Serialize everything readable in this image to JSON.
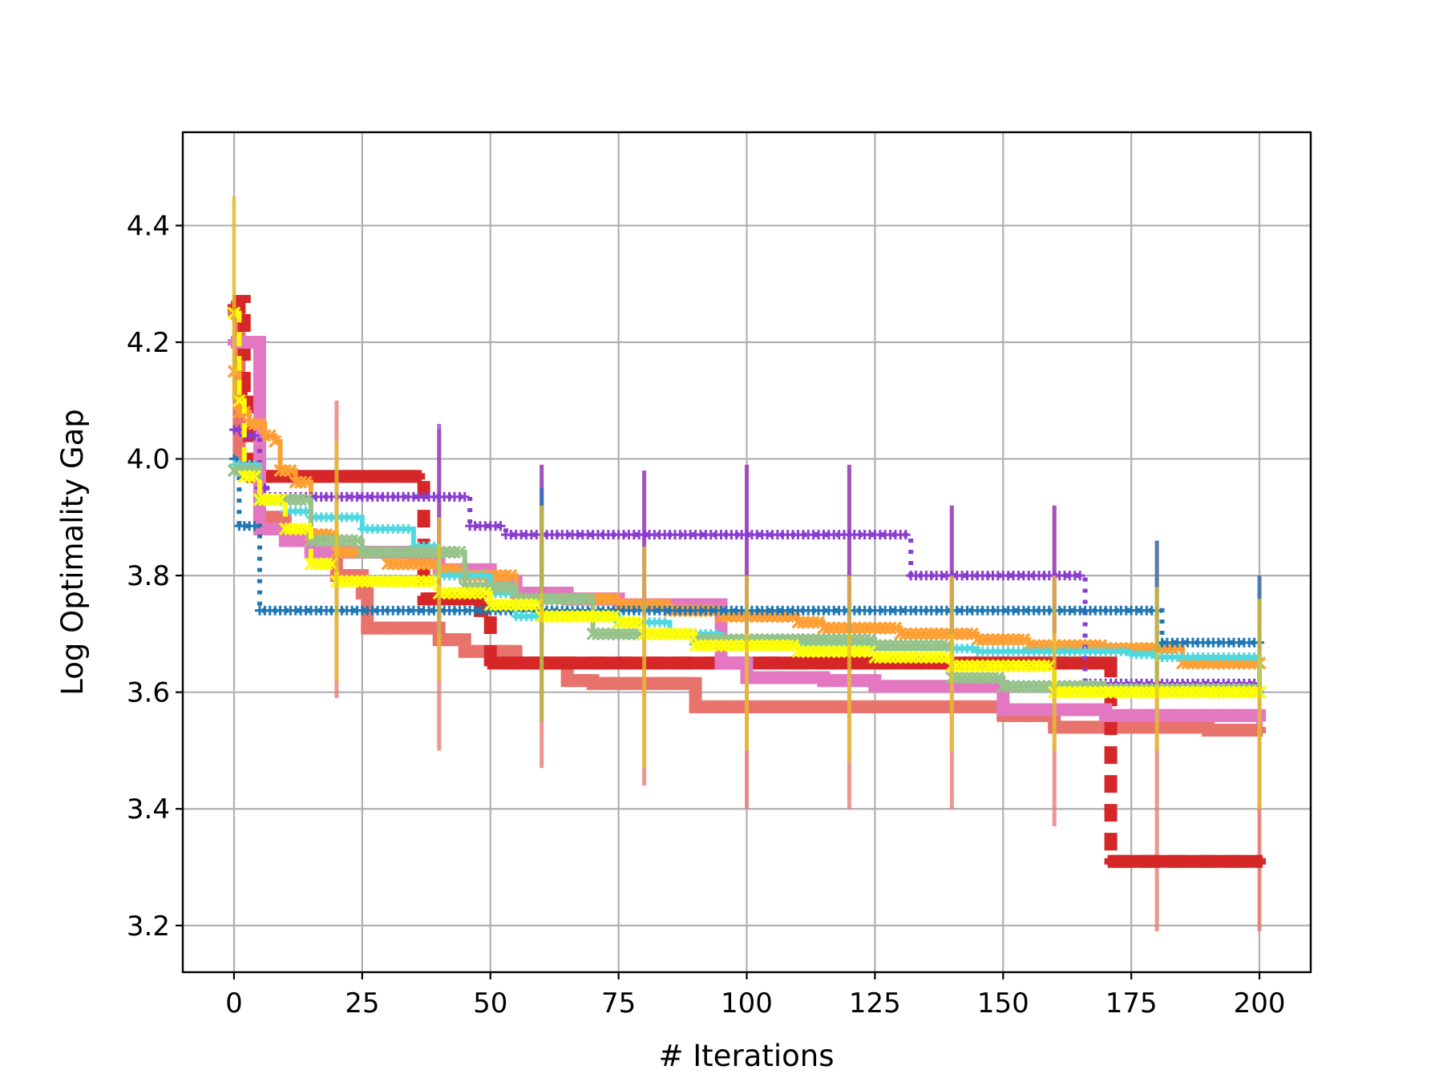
{
  "chart_data": {
    "type": "line",
    "title": "",
    "xlabel": "# Iterations",
    "ylabel": "Log Optimality Gap",
    "xlim": [
      -10,
      210
    ],
    "ylim": [
      3.12,
      4.56
    ],
    "xticks": [
      0,
      25,
      50,
      75,
      100,
      125,
      150,
      175,
      200
    ],
    "yticks": [
      3.2,
      3.4,
      3.6,
      3.8,
      4.0,
      4.2,
      4.4
    ],
    "xtick_labels": [
      "0",
      "25",
      "50",
      "75",
      "100",
      "125",
      "150",
      "175",
      "200"
    ],
    "ytick_labels": [
      "3.2",
      "3.4",
      "3.6",
      "3.8",
      "4.0",
      "4.2",
      "4.4"
    ],
    "grid": true,
    "legend": null,
    "series": [
      {
        "color": "#e8736c",
        "marker": "P",
        "width": 16,
        "dash": "",
        "steps": [
          [
            0,
            4.25
          ],
          [
            1,
            4.0
          ],
          [
            5,
            3.9
          ],
          [
            10,
            3.87
          ],
          [
            15,
            3.84
          ],
          [
            20,
            3.8
          ],
          [
            25,
            3.77
          ],
          [
            26,
            3.71
          ],
          [
            40,
            3.69
          ],
          [
            45,
            3.67
          ],
          [
            55,
            3.65
          ],
          [
            65,
            3.62
          ],
          [
            70,
            3.615
          ],
          [
            90,
            3.575
          ],
          [
            150,
            3.56
          ],
          [
            160,
            3.54
          ],
          [
            190,
            3.535
          ],
          [
            200,
            3.535
          ]
        ],
        "spikes": [
          [
            20,
            3.59,
            4.1
          ],
          [
            40,
            3.5,
            4.05
          ],
          [
            60,
            3.47,
            3.99
          ],
          [
            80,
            3.44,
            3.98
          ],
          [
            100,
            3.4,
            3.99
          ],
          [
            120,
            3.4,
            3.99
          ],
          [
            140,
            3.4,
            3.92
          ],
          [
            160,
            3.37,
            3.92
          ],
          [
            180,
            3.19,
            3.86
          ],
          [
            200,
            3.19,
            3.8
          ]
        ]
      },
      {
        "color": "#d62728",
        "marker": "P",
        "width": 16,
        "dash": "22,14",
        "steps": [
          [
            0,
            4.26
          ],
          [
            1,
            4.27
          ],
          [
            2,
            4.12
          ],
          [
            3,
            3.97
          ],
          [
            36,
            3.97
          ],
          [
            37,
            3.76
          ],
          [
            48,
            3.74
          ],
          [
            50,
            3.65
          ],
          [
            125,
            3.65
          ],
          [
            150,
            3.65
          ],
          [
            170,
            3.65
          ],
          [
            171,
            3.31
          ],
          [
            200,
            3.31
          ]
        ],
        "spikes": []
      },
      {
        "color": "#e377c2",
        "marker": "P",
        "width": 16,
        "dash": "",
        "steps": [
          [
            0,
            4.2
          ],
          [
            5,
            3.88
          ],
          [
            10,
            3.86
          ],
          [
            15,
            3.84
          ],
          [
            25,
            3.84
          ],
          [
            35,
            3.83
          ],
          [
            40,
            3.81
          ],
          [
            50,
            3.79
          ],
          [
            55,
            3.77
          ],
          [
            65,
            3.76
          ],
          [
            75,
            3.75
          ],
          [
            95,
            3.65
          ],
          [
            100,
            3.625
          ],
          [
            115,
            3.62
          ],
          [
            125,
            3.61
          ],
          [
            150,
            3.57
          ],
          [
            170,
            3.56
          ],
          [
            200,
            3.555
          ]
        ],
        "spikes": []
      },
      {
        "color": "#ff9f33",
        "marker": "x",
        "width": 6,
        "dash": "",
        "steps": [
          [
            0,
            4.15
          ],
          [
            1,
            4.08
          ],
          [
            3,
            4.06
          ],
          [
            6,
            4.04
          ],
          [
            8,
            4.03
          ],
          [
            9,
            3.98
          ],
          [
            12,
            3.96
          ],
          [
            15,
            3.87
          ],
          [
            20,
            3.84
          ],
          [
            30,
            3.82
          ],
          [
            40,
            3.81
          ],
          [
            45,
            3.8
          ],
          [
            55,
            3.76
          ],
          [
            75,
            3.75
          ],
          [
            85,
            3.74
          ],
          [
            95,
            3.73
          ],
          [
            110,
            3.72
          ],
          [
            115,
            3.71
          ],
          [
            130,
            3.7
          ],
          [
            145,
            3.69
          ],
          [
            155,
            3.68
          ],
          [
            170,
            3.675
          ],
          [
            185,
            3.65
          ],
          [
            200,
            3.65
          ]
        ],
        "spikes": []
      },
      {
        "color": "#8a3ccf",
        "marker": "+",
        "width": 6,
        "dash": "5,9",
        "steps": [
          [
            0,
            4.05
          ],
          [
            2,
            4.04
          ],
          [
            5,
            3.95
          ],
          [
            7,
            3.935
          ],
          [
            45,
            3.935
          ],
          [
            46,
            3.885
          ],
          [
            53,
            3.87
          ],
          [
            131,
            3.87
          ],
          [
            132,
            3.8
          ],
          [
            165,
            3.8
          ],
          [
            166,
            3.615
          ],
          [
            200,
            3.6
          ]
        ],
        "spikes": [
          [
            40,
            3.7,
            4.06
          ],
          [
            60,
            3.7,
            3.99
          ],
          [
            80,
            3.7,
            3.98
          ],
          [
            100,
            3.7,
            3.99
          ],
          [
            120,
            3.7,
            3.99
          ],
          [
            140,
            3.7,
            3.92
          ],
          [
            160,
            3.7,
            3.92
          ]
        ]
      },
      {
        "color": "#1f77b4",
        "marker": "+",
        "width": 6,
        "dash": "5,9",
        "steps": [
          [
            0,
            4.0
          ],
          [
            1,
            3.885
          ],
          [
            4,
            3.885
          ],
          [
            5,
            3.74
          ],
          [
            180,
            3.74
          ],
          [
            181,
            3.685
          ],
          [
            200,
            3.685
          ]
        ],
        "spikes": [
          [
            60,
            3.55,
            3.95
          ],
          [
            180,
            3.6,
            3.86
          ],
          [
            200,
            3.6,
            3.8
          ]
        ]
      },
      {
        "color": "#4fd8e0",
        "marker": "+",
        "width": 6,
        "dash": "",
        "steps": [
          [
            0,
            3.99
          ],
          [
            5,
            3.93
          ],
          [
            10,
            3.91
          ],
          [
            15,
            3.9
          ],
          [
            25,
            3.88
          ],
          [
            35,
            3.85
          ],
          [
            40,
            3.8
          ],
          [
            50,
            3.77
          ],
          [
            55,
            3.73
          ],
          [
            75,
            3.72
          ],
          [
            85,
            3.7
          ],
          [
            95,
            3.69
          ],
          [
            110,
            3.68
          ],
          [
            125,
            3.675
          ],
          [
            145,
            3.67
          ],
          [
            175,
            3.665
          ],
          [
            180,
            3.66
          ],
          [
            200,
            3.6
          ]
        ],
        "spikes": []
      },
      {
        "color": "#96c28b",
        "marker": "x",
        "width": 6,
        "dash": "",
        "steps": [
          [
            0,
            3.98
          ],
          [
            5,
            3.93
          ],
          [
            15,
            3.86
          ],
          [
            25,
            3.84
          ],
          [
            45,
            3.78
          ],
          [
            55,
            3.76
          ],
          [
            70,
            3.7
          ],
          [
            90,
            3.69
          ],
          [
            125,
            3.68
          ],
          [
            140,
            3.625
          ],
          [
            150,
            3.61
          ],
          [
            170,
            3.605
          ],
          [
            200,
            3.6
          ]
        ],
        "spikes": []
      },
      {
        "color": "#ffff00",
        "marker": "x",
        "width": 6,
        "dash": "18,12",
        "steps": [
          [
            0,
            4.25
          ],
          [
            1,
            4.1
          ],
          [
            2,
            3.97
          ],
          [
            5,
            3.93
          ],
          [
            10,
            3.88
          ],
          [
            15,
            3.82
          ],
          [
            20,
            3.79
          ],
          [
            35,
            3.79
          ],
          [
            40,
            3.77
          ],
          [
            50,
            3.75
          ],
          [
            60,
            3.73
          ],
          [
            75,
            3.72
          ],
          [
            80,
            3.7
          ],
          [
            90,
            3.68
          ],
          [
            110,
            3.67
          ],
          [
            125,
            3.66
          ],
          [
            140,
            3.645
          ],
          [
            160,
            3.6
          ],
          [
            200,
            3.6
          ]
        ],
        "spikes": []
      },
      {
        "color": "#e6c32a",
        "marker": "",
        "width": 5,
        "dash": "",
        "steps": [],
        "spikes": [
          [
            0,
            4.1,
            4.45
          ],
          [
            20,
            3.62,
            4.03
          ],
          [
            40,
            3.62,
            3.9
          ],
          [
            60,
            3.55,
            3.92
          ],
          [
            80,
            3.47,
            3.85
          ],
          [
            100,
            3.5,
            3.8
          ],
          [
            120,
            3.48,
            3.8
          ],
          [
            140,
            3.5,
            3.8
          ],
          [
            160,
            3.5,
            3.8
          ],
          [
            180,
            3.5,
            3.78
          ],
          [
            200,
            3.4,
            3.76
          ]
        ]
      }
    ]
  }
}
